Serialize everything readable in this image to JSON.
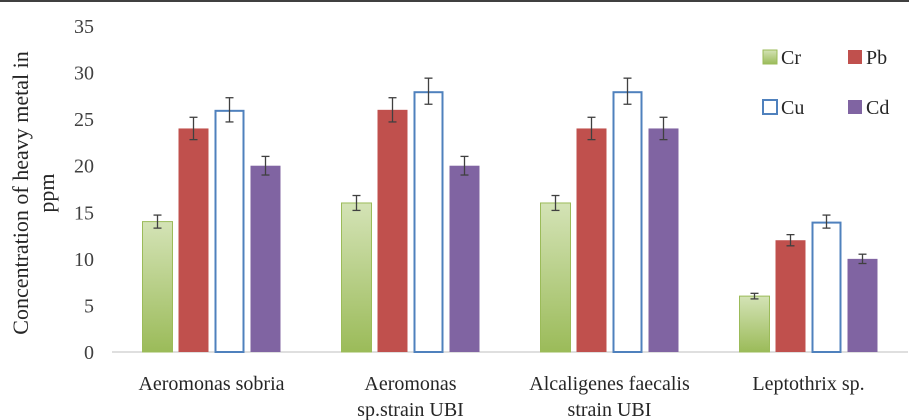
{
  "chart_data": {
    "type": "bar",
    "title": "",
    "ylabel_lines": [
      "Concentration of heavy metal in",
      "ppm"
    ],
    "xlabel": "",
    "ylim": [
      0,
      35
    ],
    "yticks": [
      0,
      5,
      10,
      15,
      20,
      25,
      30,
      35
    ],
    "categories": [
      [
        "Aeromonas sobria"
      ],
      [
        "Aeromonas",
        "sp.strain UBI"
      ],
      [
        "Alcaligenes faecalis",
        "strain UBI"
      ],
      [
        "Leptothrix sp."
      ]
    ],
    "series": [
      {
        "name": "Cr",
        "values": [
          14,
          16,
          16,
          6
        ],
        "errors": [
          0.7,
          0.8,
          0.8,
          0.3
        ],
        "color": "#9bbb59",
        "style": "gradient"
      },
      {
        "name": "Pb",
        "values": [
          24,
          26,
          24,
          12
        ],
        "errors": [
          1.2,
          1.3,
          1.2,
          0.6
        ],
        "color": "#c0504d",
        "style": "solid"
      },
      {
        "name": "Cu",
        "values": [
          26,
          28,
          28,
          14
        ],
        "errors": [
          1.3,
          1.4,
          1.4,
          0.7
        ],
        "color": "#4f81bd",
        "style": "outline"
      },
      {
        "name": "Cd",
        "values": [
          20,
          20,
          24,
          10
        ],
        "errors": [
          1.0,
          1.0,
          1.2,
          0.5
        ],
        "color": "#8064a2",
        "style": "solid"
      }
    ],
    "legend": {
      "position": "top-right",
      "columns": 2
    },
    "grid": false
  }
}
